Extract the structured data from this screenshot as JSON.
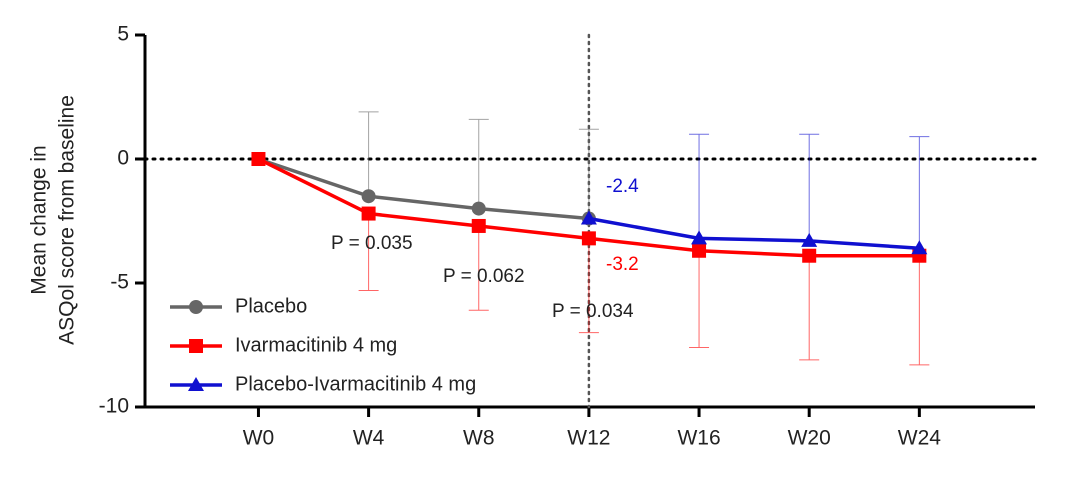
{
  "chart_data": {
    "type": "line",
    "y_label": [
      "Mean change in",
      "ASQol score from baseline"
    ],
    "categories": [
      "W0",
      "W4",
      "W8",
      "W12",
      "W16",
      "W20",
      "W24"
    ],
    "ylim": [
      -10,
      5
    ],
    "yticks": [
      -10,
      -5,
      0,
      5
    ],
    "reference_y": 0,
    "reference_x": "W12",
    "series": [
      {
        "name": "Placebo",
        "color": "#666666",
        "marker": "circle",
        "error_direction": "up",
        "values": [
          0,
          -1.5,
          -2.0,
          -2.4,
          null,
          null,
          null
        ],
        "errors": [
          null,
          3.4,
          3.6,
          3.6,
          null,
          null,
          null
        ]
      },
      {
        "name": "Ivarmacitinib 4 mg",
        "color": "#ff0000",
        "marker": "square",
        "error_direction": "down",
        "values": [
          0,
          -2.2,
          -2.7,
          -3.2,
          -3.7,
          -3.9,
          -3.9
        ],
        "errors": [
          null,
          3.1,
          3.4,
          3.8,
          3.9,
          4.2,
          4.4
        ]
      },
      {
        "name": "Placebo-Ivarmacitinib 4 mg",
        "color": "#1010d0",
        "marker": "triangle",
        "error_direction": "up",
        "values": [
          null,
          null,
          null,
          -2.4,
          -3.2,
          -3.3,
          -3.6
        ],
        "errors": [
          null,
          null,
          null,
          null,
          4.2,
          4.3,
          4.5
        ]
      }
    ],
    "annotations": [
      {
        "text": "P = 0.035",
        "color": "#222222"
      },
      {
        "text": "P = 0.062",
        "color": "#222222"
      },
      {
        "text": "P = 0.034",
        "color": "#222222"
      },
      {
        "text": "-2.4",
        "color": "#1010d0"
      },
      {
        "text": "-3.2",
        "color": "#ff0000"
      }
    ]
  }
}
